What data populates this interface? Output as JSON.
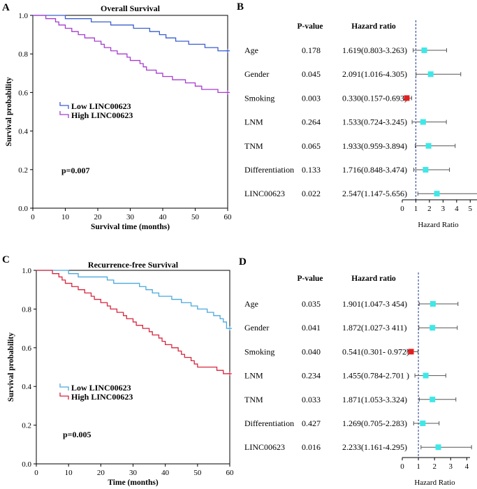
{
  "chart_data": [
    {
      "panel": "A",
      "type": "line",
      "title": "Overall Survival",
      "xlabel": "Survival time (months)",
      "ylabel": "Survival probability",
      "xlim": [
        0,
        60
      ],
      "ylim": [
        0.0,
        1.0
      ],
      "xticks": [
        "0",
        "10",
        "20",
        "30",
        "40",
        "50",
        "60"
      ],
      "yticks": [
        "0.0",
        "0.2",
        "0.4",
        "0.6",
        "0.8",
        "1.0"
      ],
      "legend_position": "left-middle",
      "annotation": "p=0.007",
      "series": [
        {
          "name": "Low LINC00623",
          "color": "#3a5fcd",
          "steps": [
            [
              0,
              1.0
            ],
            [
              10,
              0.983
            ],
            [
              18,
              0.966
            ],
            [
              24,
              0.95
            ],
            [
              31,
              0.933
            ],
            [
              36,
              0.916
            ],
            [
              39,
              0.9
            ],
            [
              41,
              0.883
            ],
            [
              44,
              0.866
            ],
            [
              48,
              0.85
            ],
            [
              53,
              0.833
            ],
            [
              57,
              0.816
            ],
            [
              60,
              0.816
            ]
          ]
        },
        {
          "name": "High LINC00623",
          "color": "#a63ccf",
          "steps": [
            [
              0,
              1.0
            ],
            [
              4,
              0.983
            ],
            [
              7,
              0.966
            ],
            [
              8,
              0.95
            ],
            [
              10,
              0.933
            ],
            [
              12,
              0.916
            ],
            [
              14,
              0.9
            ],
            [
              16,
              0.883
            ],
            [
              19,
              0.866
            ],
            [
              21,
              0.85
            ],
            [
              22,
              0.833
            ],
            [
              24,
              0.816
            ],
            [
              26,
              0.8
            ],
            [
              29,
              0.783
            ],
            [
              30,
              0.766
            ],
            [
              33,
              0.75
            ],
            [
              34,
              0.733
            ],
            [
              35,
              0.716
            ],
            [
              38,
              0.7
            ],
            [
              40,
              0.683
            ],
            [
              43,
              0.666
            ],
            [
              47,
              0.65
            ],
            [
              50,
              0.633
            ],
            [
              52,
              0.616
            ],
            [
              57,
              0.6
            ],
            [
              60,
              0.6
            ]
          ]
        }
      ]
    },
    {
      "panel": "B",
      "type": "forest",
      "header_p": "P-value",
      "header_hr": "Hazard ratio",
      "xlabel": "Hazard Ratio",
      "xlim": [
        0,
        5.5
      ],
      "xticks": [
        "0",
        "1",
        "2",
        "3",
        "4",
        "5"
      ],
      "reference_line": 1,
      "rows": [
        {
          "label": "Age",
          "p": "0.178",
          "hr_text": "1.619(0.803-3.263)",
          "hr": 1.619,
          "lo": 0.803,
          "hi": 3.263,
          "color": "#3ee8e8"
        },
        {
          "label": "Gender",
          "p": "0.045",
          "hr_text": "2.091(1.016-4.305)",
          "hr": 2.091,
          "lo": 1.016,
          "hi": 4.305,
          "color": "#3ee8e8"
        },
        {
          "label": "Smoking",
          "p": "0.003",
          "hr_text": "0.330(0.157-0.693)",
          "hr": 0.33,
          "lo": 0.157,
          "hi": 0.693,
          "color": "#e02020"
        },
        {
          "label": "LNM",
          "p": "0.264",
          "hr_text": "1.533(0.724-3.245)",
          "hr": 1.533,
          "lo": 0.724,
          "hi": 3.245,
          "color": "#3ee8e8"
        },
        {
          "label": "TNM",
          "p": "0.065",
          "hr_text": "1.933(0.959-3.894)",
          "hr": 1.933,
          "lo": 0.959,
          "hi": 3.894,
          "color": "#3ee8e8"
        },
        {
          "label": "Differentiation",
          "p": "0.133",
          "hr_text": "1.716(0.848-3.474)",
          "hr": 1.716,
          "lo": 0.848,
          "hi": 3.474,
          "color": "#3ee8e8"
        },
        {
          "label": "LINC00623",
          "p": "0.022",
          "hr_text": "2.547(1.147-5.656)",
          "hr": 2.547,
          "lo": 1.147,
          "hi": 5.656,
          "color": "#3ee8e8"
        }
      ]
    },
    {
      "panel": "C",
      "type": "line",
      "title": "Recurrence-free Survival",
      "xlabel": "Time (months)",
      "ylabel": "Survival probability",
      "xlim": [
        0,
        60
      ],
      "ylim": [
        0.0,
        1.0
      ],
      "xticks": [
        "0",
        "10",
        "20",
        "30",
        "40",
        "50",
        "60"
      ],
      "yticks": [
        "0.0",
        "0.2",
        "0.4",
        "0.6",
        "0.8",
        "1.0"
      ],
      "legend_position": "left-middle",
      "annotation": "p=0.005",
      "series": [
        {
          "name": "Low LINC00623",
          "color": "#4aa8dc",
          "steps": [
            [
              0,
              1.0
            ],
            [
              10,
              0.983
            ],
            [
              13,
              0.966
            ],
            [
              22,
              0.95
            ],
            [
              24,
              0.933
            ],
            [
              32,
              0.916
            ],
            [
              34,
              0.9
            ],
            [
              36,
              0.883
            ],
            [
              38,
              0.866
            ],
            [
              42,
              0.85
            ],
            [
              45,
              0.833
            ],
            [
              48,
              0.816
            ],
            [
              50,
              0.8
            ],
            [
              53,
              0.783
            ],
            [
              55,
              0.766
            ],
            [
              57,
              0.75
            ],
            [
              58,
              0.733
            ],
            [
              59,
              0.7
            ],
            [
              60,
              0.7
            ]
          ]
        },
        {
          "name": "High LINC00623",
          "color": "#d7263d",
          "steps": [
            [
              0,
              1.0
            ],
            [
              5,
              0.983
            ],
            [
              7,
              0.966
            ],
            [
              8,
              0.95
            ],
            [
              9,
              0.933
            ],
            [
              11,
              0.916
            ],
            [
              13,
              0.9
            ],
            [
              15,
              0.883
            ],
            [
              17,
              0.866
            ],
            [
              18,
              0.85
            ],
            [
              20,
              0.833
            ],
            [
              22,
              0.816
            ],
            [
              23,
              0.8
            ],
            [
              25,
              0.783
            ],
            [
              27,
              0.766
            ],
            [
              28,
              0.75
            ],
            [
              30,
              0.733
            ],
            [
              31,
              0.716
            ],
            [
              33,
              0.7
            ],
            [
              35,
              0.683
            ],
            [
              36,
              0.666
            ],
            [
              38,
              0.65
            ],
            [
              39,
              0.633
            ],
            [
              40,
              0.616
            ],
            [
              42,
              0.6
            ],
            [
              44,
              0.583
            ],
            [
              45,
              0.566
            ],
            [
              46,
              0.55
            ],
            [
              48,
              0.533
            ],
            [
              49,
              0.516
            ],
            [
              50,
              0.5
            ],
            [
              56,
              0.483
            ],
            [
              58,
              0.466
            ],
            [
              60,
              0.466
            ]
          ]
        }
      ]
    },
    {
      "panel": "D",
      "type": "forest",
      "header_p": "P-value",
      "header_hr": "Hazard ratio",
      "xlabel": "Hazard Ratio",
      "xlim": [
        0,
        4.2
      ],
      "xticks": [
        "0",
        "1",
        "2",
        "3",
        "4"
      ],
      "reference_line": 1,
      "rows": [
        {
          "label": "Age",
          "p": "0.035",
          "hr_text": "1.901(1.047-3 454)",
          "hr": 1.901,
          "lo": 1.047,
          "hi": 3.454,
          "color": "#3ee8e8"
        },
        {
          "label": "Gender",
          "p": "0.041",
          "hr_text": "1.872(1.027-3 411)",
          "hr": 1.872,
          "lo": 1.027,
          "hi": 3.411,
          "color": "#3ee8e8"
        },
        {
          "label": "Smoking",
          "p": "0.040",
          "hr_text": "0.541(0.301- 0.972)",
          "hr": 0.541,
          "lo": 0.301,
          "hi": 0.972,
          "color": "#e02020"
        },
        {
          "label": "LNM",
          "p": "0.234",
          "hr_text": "1.455(0.784-2.701 )",
          "hr": 1.455,
          "lo": 0.784,
          "hi": 2.701,
          "color": "#3ee8e8"
        },
        {
          "label": "TNM",
          "p": "0.033",
          "hr_text": "1.871(1.053-3.324)",
          "hr": 1.871,
          "lo": 1.053,
          "hi": 3.324,
          "color": "#3ee8e8"
        },
        {
          "label": "Differentiation",
          "p": "0.427",
          "hr_text": "1.269(0.705-2.283)",
          "hr": 1.269,
          "lo": 0.705,
          "hi": 2.283,
          "color": "#3ee8e8"
        },
        {
          "label": "LINC00623",
          "p": "0.016",
          "hr_text": "2.233(1.161-4.295)",
          "hr": 2.233,
          "lo": 1.161,
          "hi": 4.295,
          "color": "#3ee8e8"
        }
      ]
    }
  ]
}
